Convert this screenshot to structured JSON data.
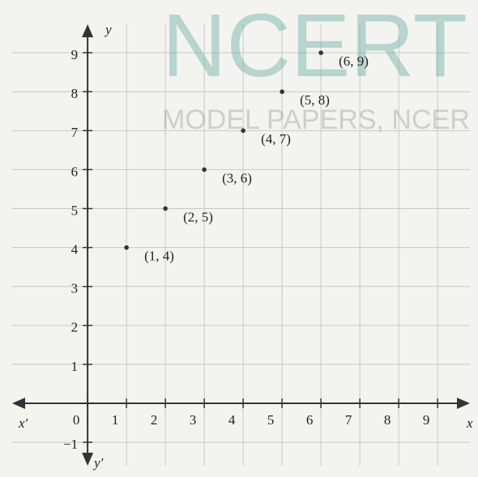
{
  "chart_data": {
    "type": "scatter",
    "watermark": [
      "NCERT",
      "MODEL PAPERS, NCER"
    ],
    "x_label": "x",
    "x_label_neg": "x'",
    "y_label": "y",
    "y_label_neg": "y'",
    "x": [
      1,
      2,
      3,
      4,
      5,
      6
    ],
    "values": [
      4,
      5,
      6,
      7,
      8,
      9
    ],
    "value_labels": [
      "(1, 4)",
      "(2, 5)",
      "(3, 6)",
      "(4, 7)",
      "(5, 8)",
      "(6, 9)"
    ],
    "color": "#333333",
    "xlim": [
      -1.94,
      9.83
    ],
    "ylim": [
      -1.6,
      9.73
    ],
    "xticks": [
      0,
      1,
      2,
      3,
      4,
      5,
      6,
      7,
      8,
      9
    ],
    "yticks": [
      {
        "value": -1,
        "label": "−1"
      },
      1,
      2,
      3,
      4,
      5,
      6,
      7,
      8,
      9
    ],
    "grid": true
  }
}
